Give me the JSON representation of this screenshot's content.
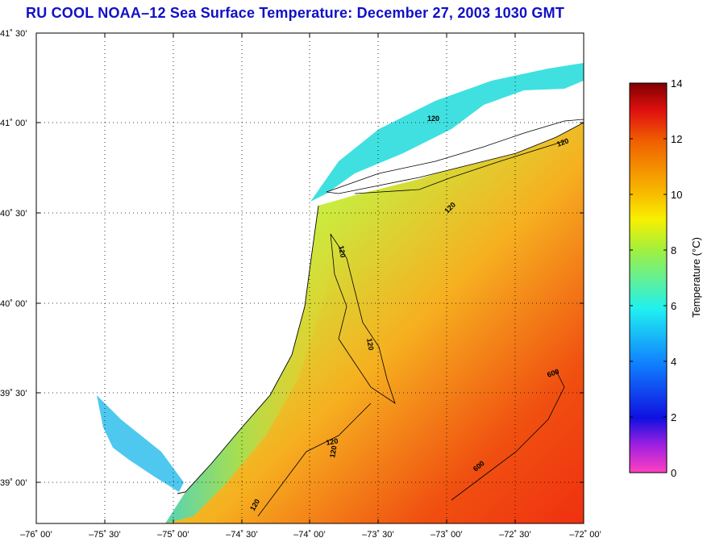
{
  "title": "RU COOL  NOAA–12  Sea Surface Temperature:  December 27, 2003 1030 GMT",
  "map": {
    "lat_labels": [
      "41˚ 30’",
      "41˚ 00’",
      "40˚ 30’",
      "40˚ 00’",
      "39˚ 30’",
      "39˚ 00’"
    ],
    "lon_labels": [
      "–76˚ 00’",
      "–75˚ 30’",
      "–75˚ 00’",
      "–74˚ 30’",
      "–74˚ 00’",
      "–73˚ 30’",
      "–73˚ 00’",
      "–72˚ 30’",
      "–72˚ 00’"
    ],
    "contour_labels": [
      "120",
      "120",
      "120",
      "120",
      "120",
      "120",
      "120",
      "120",
      "600",
      "600"
    ],
    "colors": {
      "land": "#ffffff",
      "border": "#000000",
      "grid": "#000000"
    }
  },
  "colorbar": {
    "label": "Temperature (°C)",
    "ticks": [
      "14",
      "12",
      "10",
      "8",
      "6",
      "4",
      "2",
      "0"
    ],
    "range": [
      0,
      14
    ]
  }
}
